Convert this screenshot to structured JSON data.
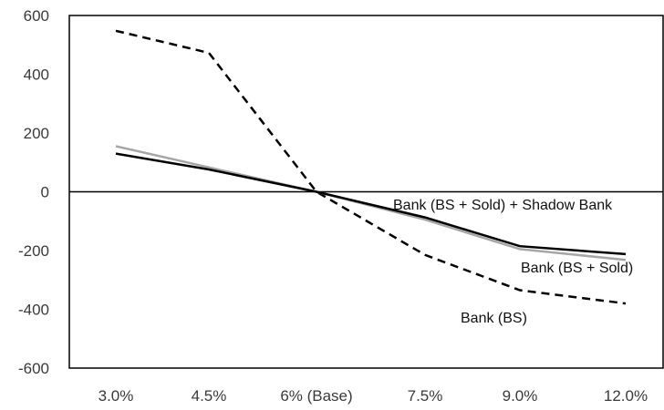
{
  "chart_data": {
    "type": "line",
    "categories": [
      "3.0%",
      "4.5%",
      "6% (Base)",
      "7.5%",
      "9.0%",
      "12.0%"
    ],
    "ylim": [
      -600,
      600
    ],
    "yticks": [
      "600",
      "400",
      "200",
      "0",
      "-200",
      "-400",
      "-600"
    ],
    "grid": false,
    "series": [
      {
        "name": "Bank (BS)",
        "values": [
          548,
          473,
          0,
          -215,
          -335,
          -380
        ],
        "color": "#000000",
        "dash": "dashed"
      },
      {
        "name": "Bank (BS + Sold)",
        "values": [
          155,
          83,
          0,
          -95,
          -195,
          -232
        ],
        "color": "#a6a6a6",
        "dash": "solid"
      },
      {
        "name": "Bank (BS + Sold) + Shadow Bank",
        "values": [
          130,
          76,
          0,
          -87,
          -185,
          -212
        ],
        "color": "#000000",
        "dash": "solid"
      }
    ]
  }
}
